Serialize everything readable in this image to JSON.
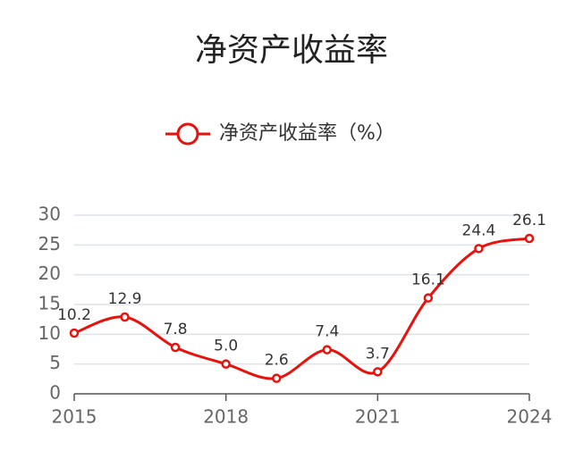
{
  "chart_data": {
    "type": "line",
    "title": "净资产收益率",
    "x": [
      2015,
      2016,
      2017,
      2018,
      2019,
      2020,
      2021,
      2022,
      2023,
      2024
    ],
    "xlim": [
      2015,
      2024
    ],
    "xticks": [
      2015,
      2018,
      2021,
      2024
    ],
    "ylim": [
      0,
      30
    ],
    "yticks": [
      0,
      5,
      10,
      15,
      20,
      25,
      30
    ],
    "grid": true,
    "smooth": true,
    "legend": "top",
    "series": [
      {
        "name": "净资产收益率（%）",
        "color": "#e8120c",
        "values": [
          10.2,
          12.9,
          7.8,
          5.0,
          2.6,
          7.4,
          3.7,
          16.1,
          24.4,
          26.1
        ],
        "value_labels": [
          "10.2",
          "12.9",
          "7.8",
          "5.0",
          "2.6",
          "7.4",
          "3.7",
          "16.1",
          "24.4",
          "26.1"
        ]
      }
    ]
  }
}
